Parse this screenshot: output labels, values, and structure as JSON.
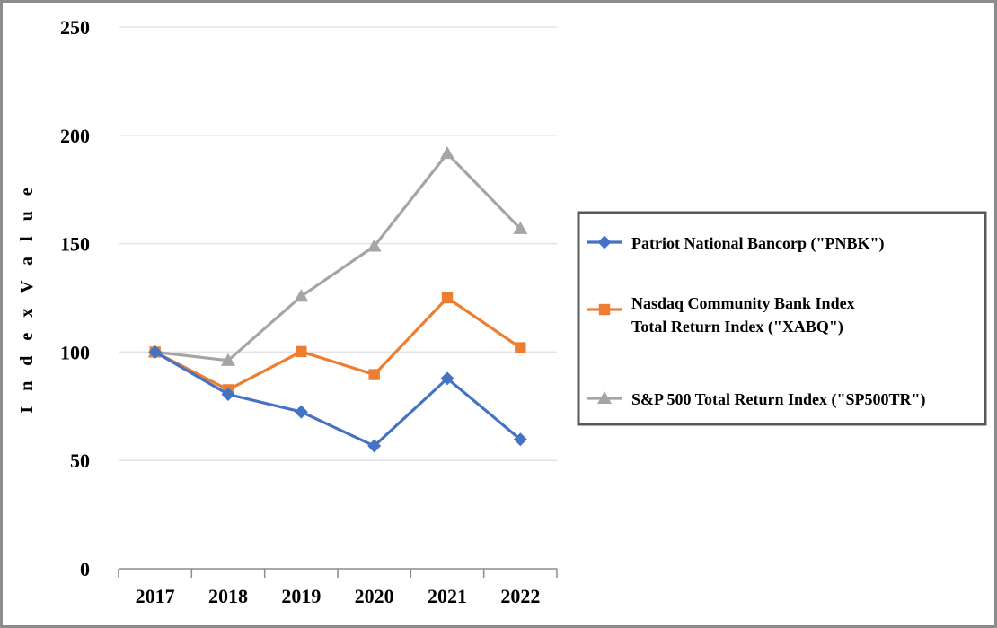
{
  "chart_data": {
    "type": "line",
    "title": "",
    "xlabel": "",
    "ylabel": "I n d e x V a l u e",
    "categories": [
      "2017",
      "2018",
      "2019",
      "2020",
      "2021",
      "2022"
    ],
    "ylim": [
      0,
      250
    ],
    "yticks": [
      "0",
      "50",
      "100",
      "150",
      "200",
      "250"
    ],
    "grid": true,
    "legend_position": "right",
    "series": [
      {
        "name": "Patriot National Bancorp (\"PNBK\")",
        "legend_lines": [
          "Patriot National Bancorp (\"PNBK\")"
        ],
        "color": "#4472c4",
        "marker": "diamond",
        "values": [
          100,
          80.5,
          72.4,
          56.7,
          87.8,
          59.7
        ]
      },
      {
        "name": "Nasdaq Community Bank Index Total Return Index (\"XABQ\")",
        "legend_lines": [
          "Nasdaq Community Bank Index",
          "Total Return Index (\"XABQ\")"
        ],
        "color": "#ed7d31",
        "marker": "square",
        "values": [
          100,
          82.6,
          100.2,
          89.6,
          125.0,
          102.0
        ]
      },
      {
        "name": "S&P 500 Total Return Index (\"SP500TR\")",
        "legend_lines": [
          "S&P 500 Total Return Index (\"SP500TR\")"
        ],
        "color": "#a5a5a5",
        "marker": "triangle",
        "values": [
          100,
          96.1,
          125.7,
          148.8,
          191.6,
          156.9
        ]
      }
    ]
  }
}
